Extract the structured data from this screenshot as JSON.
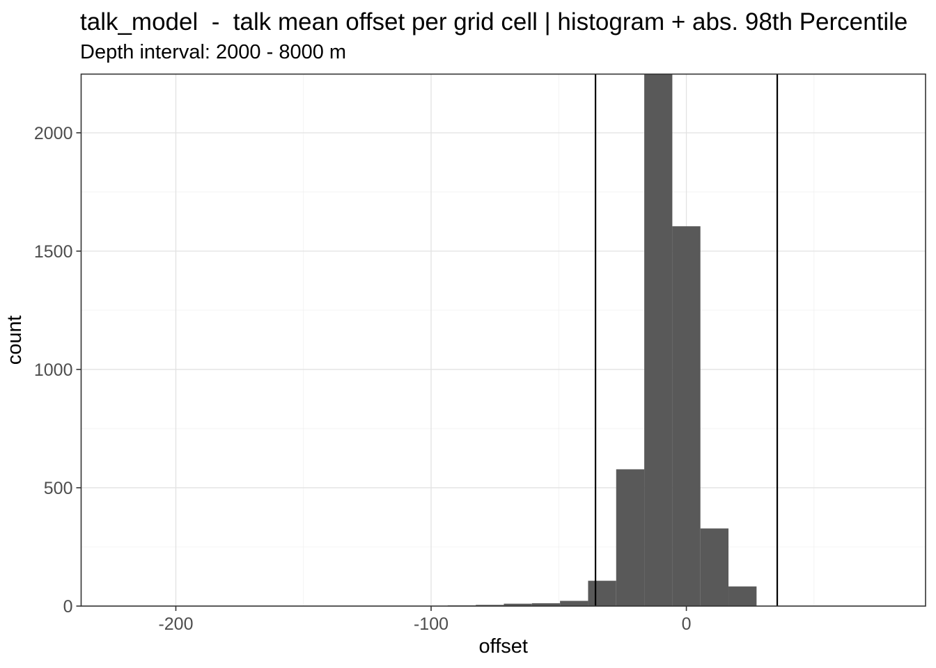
{
  "header": {
    "title": "talk_model  -  talk mean offset per grid cell | histogram + abs. 98th Percentile",
    "subtitle": "Depth interval: 2000 - 8000 m"
  },
  "chart_data": {
    "type": "bar",
    "subtype": "histogram",
    "title": "talk_model  -  talk mean offset per grid cell | histogram + abs. 98th Percentile",
    "subtitle": "Depth interval: 2000 - 8000 m",
    "xlabel": "offset",
    "ylabel": "count",
    "xlim": [
      -237.1,
      93.7
    ],
    "ylim": [
      0,
      2248
    ],
    "x_ticks": [
      -200,
      -100,
      0
    ],
    "x_minor_ticks": [
      -150,
      -50,
      50
    ],
    "y_ticks": [
      0,
      500,
      1000,
      1500,
      2000
    ],
    "y_minor_ticks": [
      250,
      750,
      1250,
      1750
    ],
    "grid": true,
    "legend": false,
    "bin_width": 11,
    "bins": [
      {
        "center": -88,
        "count": 3
      },
      {
        "center": -77,
        "count": 5
      },
      {
        "center": -66,
        "count": 10
      },
      {
        "center": -55,
        "count": 12
      },
      {
        "center": -44,
        "count": 22
      },
      {
        "center": -33,
        "count": 107
      },
      {
        "center": -22,
        "count": 578
      },
      {
        "center": -11,
        "count": 2250,
        "clipped_at_top": true
      },
      {
        "center": 0,
        "count": 1605
      },
      {
        "center": 11,
        "count": 328
      },
      {
        "center": 22,
        "count": 83
      }
    ],
    "vlines": {
      "label": "abs. 98th Percentile",
      "values": [
        -35.6,
        35.6
      ]
    },
    "colors": {
      "bar_fill": "#595959",
      "vline": "#000000",
      "grid_major": "#e2e2e2",
      "grid_minor": "#f0f0f0",
      "panel_border": "#333333",
      "tick_mark": "#333333",
      "tick_text": "#4d4d4d",
      "title_text": "#000000",
      "background": "#ffffff"
    }
  }
}
